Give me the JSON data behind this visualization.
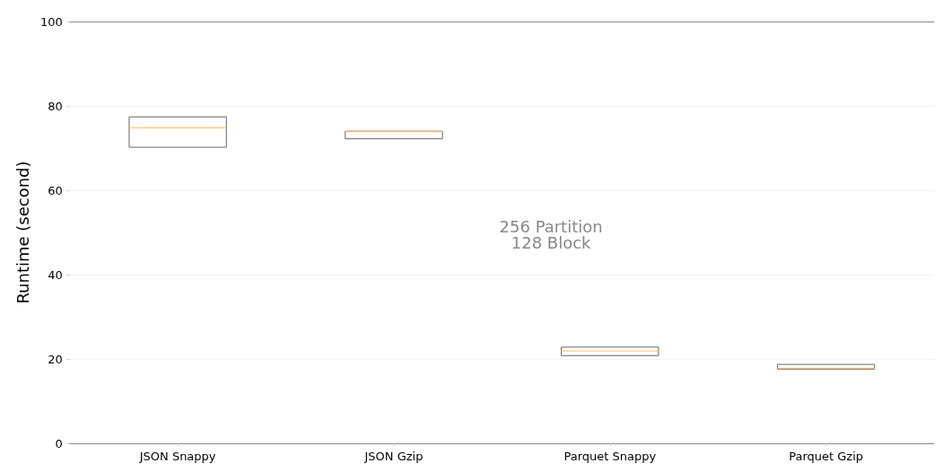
{
  "chart_data": {
    "type": "box",
    "ylabel": "Runtime (second)",
    "categories": [
      "JSON Snappy",
      "JSON Gzip",
      "Parquet Snappy",
      "Parquet Gzip"
    ],
    "boxes": [
      {
        "low": 70.2,
        "q1": 70.2,
        "median": 74.8,
        "q3": 77.4,
        "high": 77.4
      },
      {
        "low": 72.2,
        "q1": 72.2,
        "median": 73.9,
        "q3": 74.0,
        "high": 74.0
      },
      {
        "low": 20.8,
        "q1": 20.8,
        "median": 21.9,
        "q3": 22.8,
        "high": 22.8
      },
      {
        "low": 17.6,
        "q1": 17.6,
        "median": 17.8,
        "q3": 18.7,
        "high": 18.7
      }
    ],
    "color": "#666666",
    "ylim": [
      0,
      100
    ],
    "yticks": [
      0,
      20,
      40,
      60,
      80,
      100
    ],
    "grid": "y",
    "annotations": [
      "256 Partition\n128 Block"
    ]
  }
}
